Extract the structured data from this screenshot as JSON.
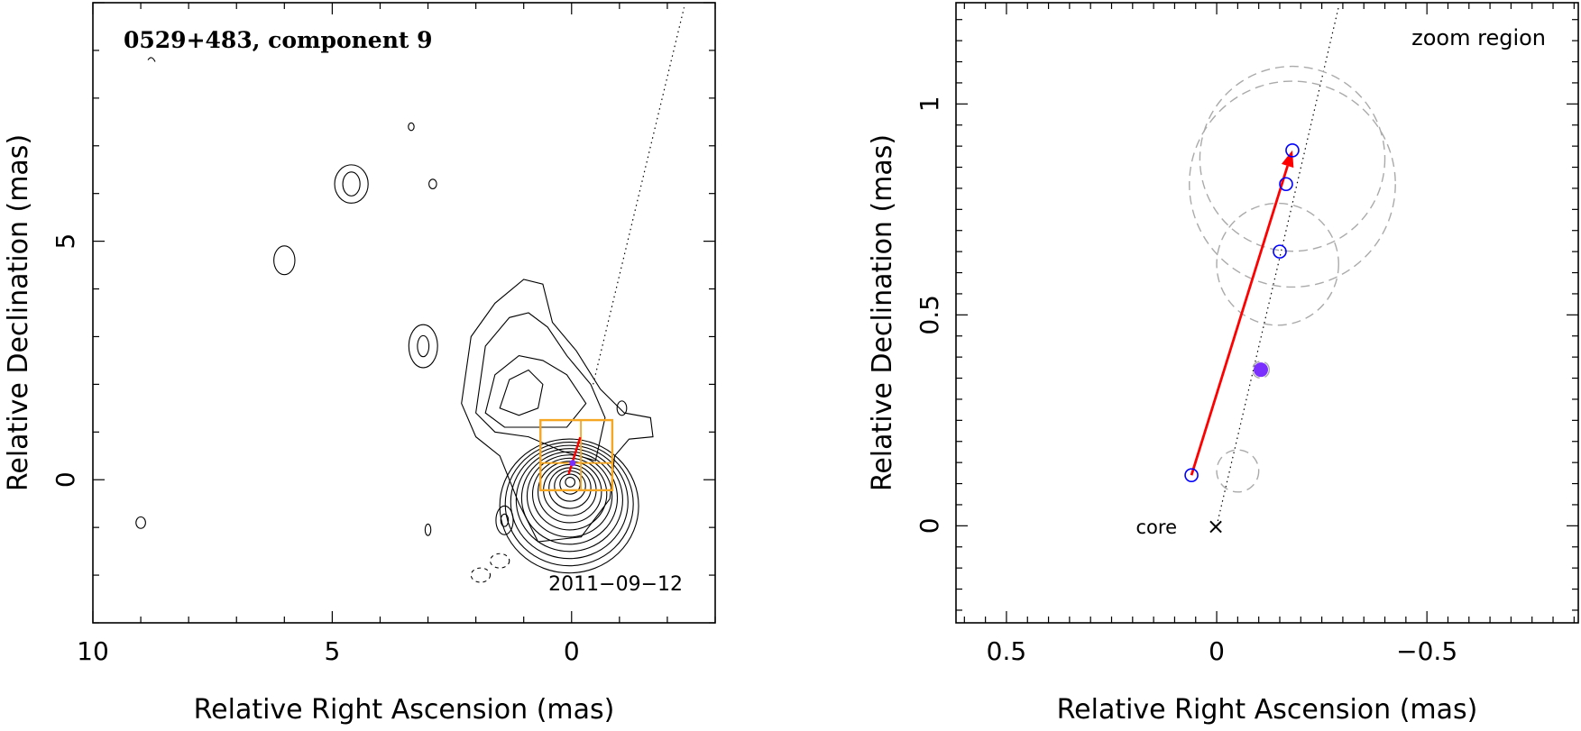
{
  "chart_data": [
    {
      "type": "contour",
      "title": "0529+483, component 9",
      "annotation": "2011−09−12",
      "xlabel": "Relative Right Ascension (mas)",
      "ylabel": "Relative Declination (mas)",
      "xlim": [
        10,
        -3
      ],
      "ylim": [
        -3,
        10
      ],
      "xticks": [
        10,
        5,
        0
      ],
      "xtick_labels": [
        "10",
        "5",
        "0"
      ],
      "yticks": [
        0,
        5
      ],
      "ytick_labels": [
        "0",
        "5"
      ],
      "core": {
        "x": 0,
        "y": 0
      },
      "zoom_box": {
        "x0": -0.85,
        "x1": 0.65,
        "y0": -0.22,
        "y1": 1.25
      },
      "component_motion": {
        "from": [
          0.06,
          0.12
        ],
        "to": [
          -0.18,
          0.89
        ]
      },
      "jet_direction": {
        "from": [
          0,
          0
        ],
        "to": [
          -2.35,
          9.9
        ]
      },
      "colors": {
        "contour": "#000000",
        "zoom_box": "#f5a623",
        "motion": "#ff0000"
      }
    },
    {
      "type": "scatter",
      "subtitle": "zoom region",
      "xlabel": "Relative Right Ascension (mas)",
      "ylabel": "Relative Declination (mas)",
      "xlim": [
        0.62,
        -0.86
      ],
      "ylim": [
        -0.23,
        1.24
      ],
      "xticks": [
        0.5,
        0,
        -0.5
      ],
      "xtick_labels": [
        "0.5",
        "0",
        "−0.5"
      ],
      "yticks": [
        0,
        0.5,
        1
      ],
      "ytick_labels": [
        "0",
        "0.5",
        "1"
      ],
      "core_label": "core",
      "core_marker": "×",
      "core": {
        "x": 0,
        "y": 0
      },
      "points": [
        {
          "x": 0.06,
          "y": 0.12,
          "filled": false
        },
        {
          "x": -0.15,
          "y": 0.65,
          "filled": false
        },
        {
          "x": -0.165,
          "y": 0.81,
          "filled": false
        },
        {
          "x": -0.18,
          "y": 0.89,
          "filled": false
        }
      ],
      "mean_position": {
        "x": -0.105,
        "y": 0.37
      },
      "beam_circles": [
        {
          "x": -0.05,
          "y": 0.13,
          "r": 0.05
        },
        {
          "x": -0.105,
          "y": 0.37,
          "r": 0.02
        },
        {
          "x": -0.145,
          "y": 0.62,
          "r": 0.145
        },
        {
          "x": -0.18,
          "y": 0.81,
          "r": 0.245
        },
        {
          "x": -0.18,
          "y": 0.87,
          "r": 0.22
        }
      ],
      "motion_vector": {
        "from": [
          0.06,
          0.12
        ],
        "to": [
          -0.18,
          0.89
        ]
      },
      "jet_direction": {
        "from": [
          0,
          0
        ],
        "to": [
          -0.29,
          1.23
        ]
      },
      "colors": {
        "points": "#0000ff",
        "mean": "#7b2fff",
        "vector": "#ff0000",
        "beam": "#aaaaaa"
      }
    }
  ]
}
